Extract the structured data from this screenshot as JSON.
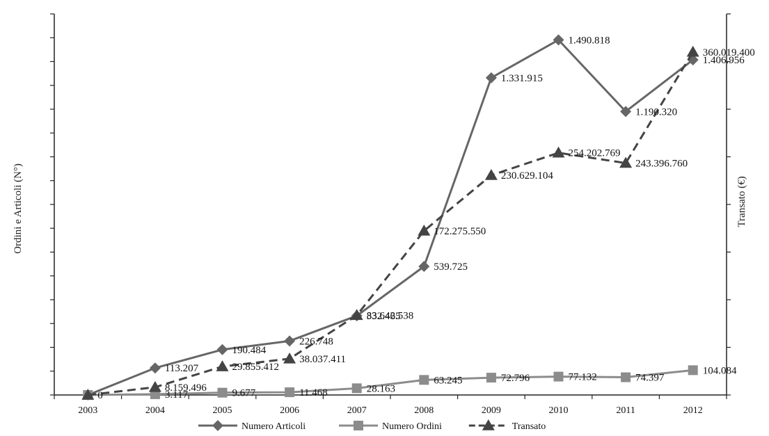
{
  "chart_data": {
    "type": "line",
    "categories": [
      "2003",
      "2004",
      "2005",
      "2006",
      "2007",
      "2008",
      "2009",
      "2010",
      "2011",
      "2012"
    ],
    "ylabel_left": "Ordini e Articoli (N°)",
    "ylabel_right": "Transato (€)",
    "ylim_left": [
      0,
      1600000
    ],
    "ylim_right": [
      0,
      400000000
    ],
    "grid": false,
    "legend_position": "bottom",
    "series": [
      {
        "name": "Numero Articoli",
        "axis": "left",
        "marker": "diamond",
        "dash": "solid",
        "color": "#666666",
        "values": [
          0,
          113207,
          190484,
          226748,
          332465,
          539725,
          1331915,
          1490818,
          1190320,
          1406956
        ],
        "labels": [
          "",
          "113.207",
          "190.484",
          "226.748",
          "332.465",
          "539.725",
          "1.331.915",
          "1.490.818",
          "1.190.320",
          "1.406.956"
        ]
      },
      {
        "name": "Numero Ordini",
        "axis": "left",
        "marker": "square",
        "dash": "solid",
        "color": "#8c8c8c",
        "values": [
          0,
          3117,
          9677,
          11468,
          28163,
          63245,
          72796,
          77132,
          74397,
          104084
        ],
        "labels": [
          "",
          "3.117",
          "9.677",
          "11.468",
          "28.163",
          "63.245",
          "72.796",
          "77.132",
          "74.397",
          "104.084"
        ]
      },
      {
        "name": "Transato",
        "axis": "right",
        "marker": "triangle",
        "dash": "dashed",
        "color": "#444444",
        "values": [
          0,
          8159496,
          29855412,
          38037411,
          83642538,
          172275550,
          230629104,
          254202769,
          243396760,
          360019400
        ],
        "labels": [
          "0",
          "8.159.496",
          "29.855.412",
          "38.037.411",
          "83.642.538",
          "172.275.550",
          "230.629.104",
          "254.202.769",
          "243.396.760",
          "360.019.400"
        ]
      }
    ]
  }
}
